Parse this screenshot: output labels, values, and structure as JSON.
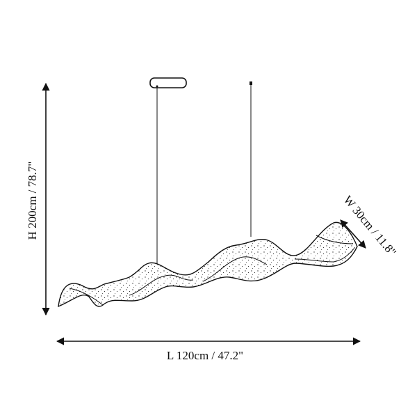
{
  "dimensions": {
    "height": "H 200cm / 78.7\"",
    "width": "W 30cm / 11.8\"",
    "length": "L 120cm / 47.2\""
  },
  "colors": {
    "line": "#111111",
    "background": "#ffffff"
  },
  "icons": {
    "canopy": "ceiling-canopy-icon",
    "fixture": "wave-pendant-light-icon"
  }
}
